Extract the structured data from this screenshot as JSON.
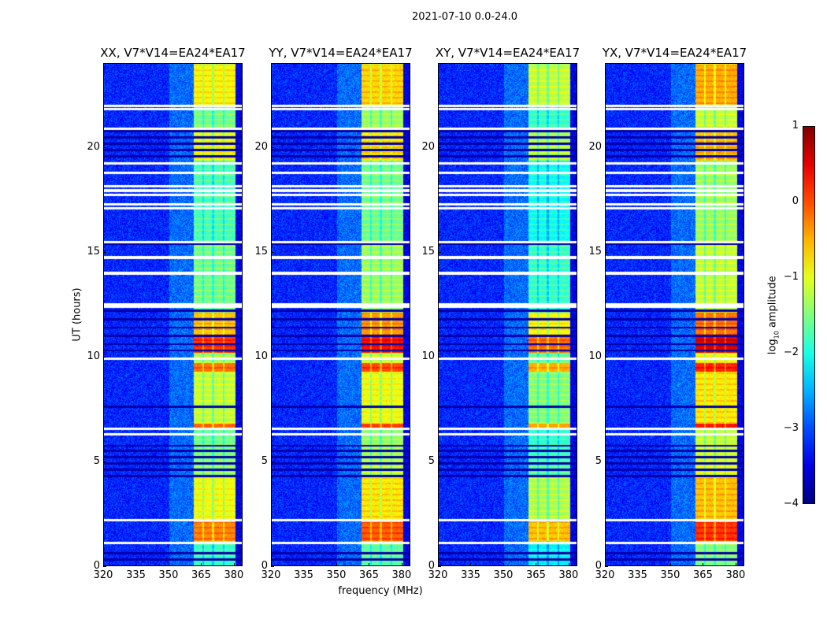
{
  "chart_data": {
    "type": "heatmap",
    "suptitle": "2021-07-10 0.0-24.0",
    "xlabel": "frequency (MHz)",
    "ylabel": "UT (hours)",
    "xlim": [
      320,
      384
    ],
    "ylim": [
      0,
      24
    ],
    "xticks": [
      "320",
      "335",
      "350",
      "365",
      "380"
    ],
    "xtick_values": [
      320,
      335,
      350,
      365,
      380
    ],
    "yticks": [
      "0",
      "5",
      "10",
      "15",
      "20"
    ],
    "ytick_values": [
      0,
      5,
      10,
      15,
      20
    ],
    "colorbar": {
      "label_main": "log",
      "label_sub": "10",
      "label_rest": " amplitude",
      "colormap": "jet",
      "range": [
        -4,
        1
      ],
      "ticks": [
        "1",
        "0",
        "−1",
        "−2",
        "−3",
        "−4"
      ],
      "tick_values": [
        1,
        0,
        -1,
        -2,
        -3,
        -4
      ]
    },
    "panels": [
      {
        "title": "XX, V7*V14=EA24*EA17",
        "band_offset": 0.0
      },
      {
        "title": "YY, V7*V14=EA24*EA17",
        "band_offset": 0.2
      },
      {
        "title": "XY, V7*V14=EA24*EA17",
        "band_offset": -0.3
      },
      {
        "title": "YX, V7*V14=EA24*EA17",
        "band_offset": 0.4
      }
    ],
    "band_mhz": [
      361.5,
      381
    ],
    "band_gaps_mhz": [
      366,
      370.5,
      375.5
    ],
    "background_level": -3.2,
    "band_level_by_hour": [
      [
        0,
        1.1,
        -1.9
      ],
      [
        1.2,
        2.1,
        -0.3
      ],
      [
        2.2,
        4.2,
        -1.0
      ],
      [
        4.2,
        5.8,
        -1.5
      ],
      [
        5.8,
        6.5,
        -1.6
      ],
      [
        6.5,
        6.8,
        -0.1
      ],
      [
        6.8,
        9.3,
        -1.2
      ],
      [
        9.3,
        9.7,
        -0.2
      ],
      [
        9.7,
        10.2,
        -1.4
      ],
      [
        10.2,
        11.0,
        0.1
      ],
      [
        11.0,
        12.1,
        -0.6
      ],
      [
        12.1,
        15.5,
        -1.6
      ],
      [
        15.5,
        19.4,
        -1.8
      ],
      [
        19.4,
        21.0,
        -1.0
      ],
      [
        21.0,
        22.0,
        -1.6
      ],
      [
        22.0,
        24.0,
        -0.9
      ]
    ],
    "flagged_hours": [
      1.1,
      2.2,
      6.3,
      6.55,
      9.9,
      12.4,
      12.5,
      14.0,
      14.75,
      15.5,
      17.1,
      17.3,
      17.75,
      17.95,
      18.15,
      18.8,
      19.25,
      20.9,
      21.85,
      22.0
    ],
    "dropout_hours": [
      0.3,
      0.6,
      4.3,
      4.6,
      4.9,
      5.2,
      5.5,
      5.75,
      7.6,
      10.3,
      10.6,
      11.0,
      11.4,
      11.8,
      12.2,
      15.4,
      19.6,
      19.9,
      20.2,
      20.5,
      20.8
    ]
  }
}
